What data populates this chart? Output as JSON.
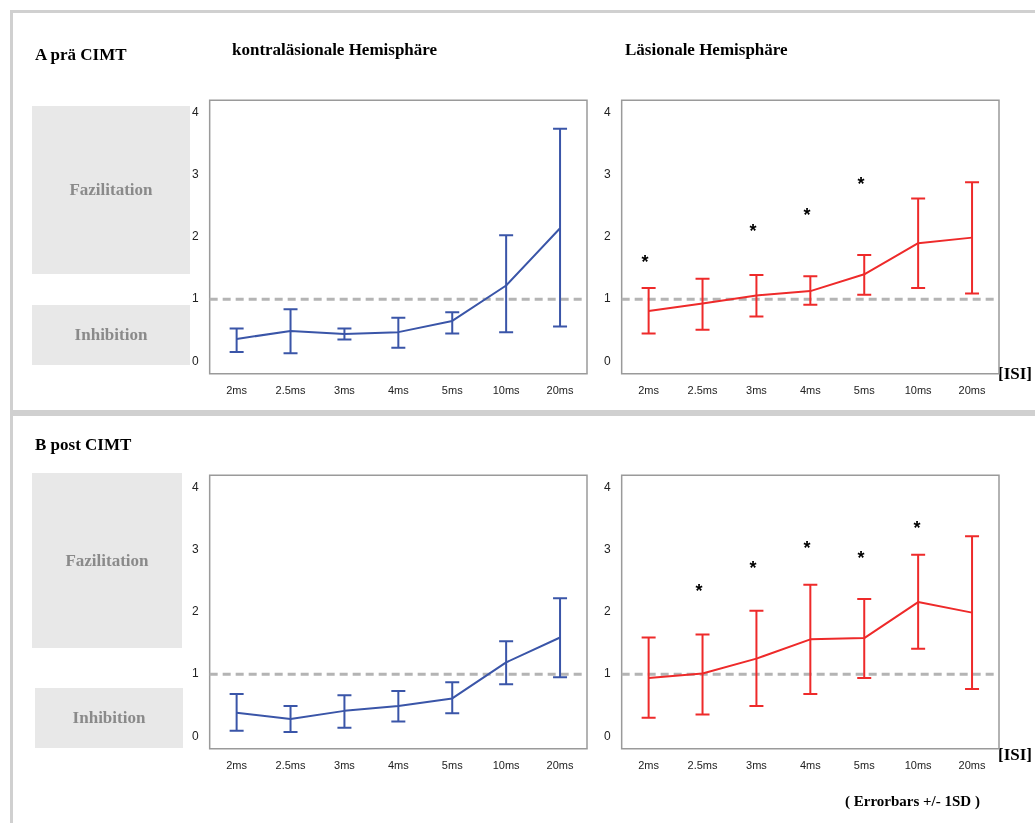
{
  "chart_data": [
    {
      "type": "line",
      "title": "kontraläsionale Hemisphäre",
      "categories": [
        "2ms",
        "2.5ms",
        "3ms",
        "4ms",
        "5ms",
        "10ms",
        "20ms"
      ],
      "series": [
        {
          "color": "#3a55a8",
          "values": [
            0.36,
            0.49,
            0.44,
            0.47,
            0.65,
            1.22,
            2.14
          ],
          "errors": [
            [
              0.15,
              0.53
            ],
            [
              0.13,
              0.84
            ],
            [
              0.35,
              0.53
            ],
            [
              0.22,
              0.7
            ],
            [
              0.45,
              0.79
            ],
            [
              0.47,
              2.03
            ],
            [
              0.56,
              3.74
            ]
          ]
        }
      ],
      "ylim": [
        -0.2,
        4.2
      ],
      "yticks": [
        0,
        1,
        2,
        3,
        4
      ],
      "grid": false,
      "legend": false,
      "marker": "none",
      "line_style": "solid",
      "ref_lines": [
        {
          "axis": "y",
          "value": 1,
          "color": "#b4b4b4",
          "line_style": "dashed"
        }
      ],
      "annotations": [
        "A prä CIMT",
        "Fazilitation",
        "Inhibition"
      ]
    },
    {
      "type": "line",
      "title": "Läsionale Hemisphäre",
      "xlabel": "[ISI]",
      "categories": [
        "2ms",
        "2.5ms",
        "3ms",
        "4ms",
        "5ms",
        "10ms",
        "20ms"
      ],
      "series": [
        {
          "color": "#ee2a2a",
          "values": [
            0.81,
            0.93,
            1.06,
            1.13,
            1.4,
            1.9,
            1.99
          ],
          "errors": [
            [
              0.45,
              1.18
            ],
            [
              0.51,
              1.33
            ],
            [
              0.72,
              1.39
            ],
            [
              0.91,
              1.37
            ],
            [
              1.07,
              1.71
            ],
            [
              1.18,
              2.62
            ],
            [
              1.09,
              2.88
            ]
          ]
        }
      ],
      "ylim": [
        -0.2,
        4.2
      ],
      "yticks": [
        0,
        1,
        2,
        3,
        4
      ],
      "grid": false,
      "legend": false,
      "marker": "none",
      "line_style": "solid",
      "ref_lines": [
        {
          "axis": "y",
          "value": 1,
          "color": "#b4b4b4",
          "line_style": "dashed"
        }
      ],
      "annotations": [
        "*",
        "*",
        "*",
        "*"
      ]
    },
    {
      "type": "line",
      "categories": [
        "2ms",
        "2.5ms",
        "3ms",
        "4ms",
        "5ms",
        "10ms",
        "20ms"
      ],
      "series": [
        {
          "color": "#3a55a8",
          "values": [
            0.38,
            0.28,
            0.41,
            0.49,
            0.61,
            1.19,
            1.59
          ],
          "errors": [
            [
              0.09,
              0.68
            ],
            [
              0.07,
              0.49
            ],
            [
              0.14,
              0.66
            ],
            [
              0.24,
              0.73
            ],
            [
              0.37,
              0.87
            ],
            [
              0.84,
              1.53
            ],
            [
              0.95,
              2.22
            ]
          ]
        }
      ],
      "ylim": [
        -0.2,
        4.2
      ],
      "yticks": [
        0,
        1,
        2,
        3,
        4
      ],
      "grid": false,
      "legend": false,
      "marker": "none",
      "line_style": "solid",
      "ref_lines": [
        {
          "axis": "y",
          "value": 1,
          "color": "#b4b4b4",
          "line_style": "dashed"
        }
      ],
      "annotations": [
        "B post CIMT",
        "Fazilitation",
        "Inhibition"
      ]
    },
    {
      "type": "line",
      "xlabel": "[ISI]",
      "categories": [
        "2ms",
        "2.5ms",
        "3ms",
        "4ms",
        "5ms",
        "10ms",
        "20ms"
      ],
      "series": [
        {
          "color": "#ee2a2a",
          "values": [
            0.94,
            1.01,
            1.25,
            1.56,
            1.58,
            2.16,
            1.99
          ],
          "errors": [
            [
              0.3,
              1.59
            ],
            [
              0.35,
              1.64
            ],
            [
              0.49,
              2.02
            ],
            [
              0.68,
              2.44
            ],
            [
              0.94,
              2.21
            ],
            [
              1.41,
              2.92
            ],
            [
              0.76,
              3.22
            ]
          ]
        }
      ],
      "ylim": [
        -0.2,
        4.2
      ],
      "yticks": [
        0,
        1,
        2,
        3,
        4
      ],
      "grid": false,
      "legend": false,
      "marker": "none",
      "line_style": "solid",
      "ref_lines": [
        {
          "axis": "y",
          "value": 1,
          "color": "#b4b4b4",
          "line_style": "dashed"
        }
      ],
      "annotations": [
        "*",
        "*",
        "*",
        "*",
        "*",
        "( Errorbars +/- 1SD )"
      ]
    }
  ]
}
